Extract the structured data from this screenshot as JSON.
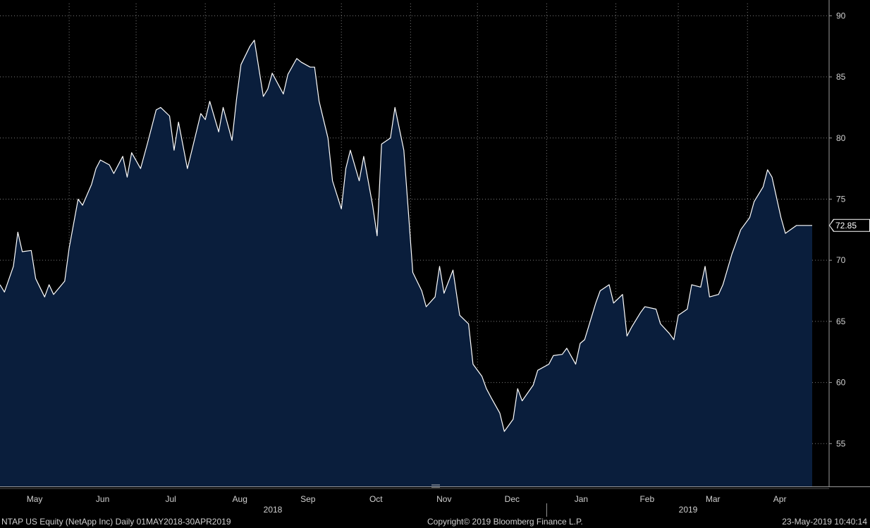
{
  "colors": {
    "background": "#000000",
    "area_fill": "#0a1e3c",
    "line": "#ffffff",
    "grid": "#7a7a7a",
    "text": "#d0d0d0"
  },
  "footer": {
    "left": "NTAP US Equity (NetApp Inc)  Daily 01MAY2018-30APR2019",
    "center": "Copyright© 2019 Bloomberg Finance L.P.",
    "right": "23-May-2019 10:40:14"
  },
  "chart_data": {
    "type": "area",
    "ylim": [
      51.5,
      91
    ],
    "grid": true,
    "y_ticks": [
      55,
      60,
      65,
      70,
      75,
      80,
      85,
      90
    ],
    "x_month_labels": [
      "May",
      "Jun",
      "Jul",
      "Aug",
      "Sep",
      "Oct",
      "Nov",
      "Dec",
      "Jan",
      "Feb",
      "Mar",
      "Apr"
    ],
    "year_labels": [
      "2018",
      "2019"
    ],
    "last_value_label": "72.85",
    "x": [
      "2018-05-01",
      "2018-05-03",
      "2018-05-07",
      "2018-05-09",
      "2018-05-11",
      "2018-05-15",
      "2018-05-17",
      "2018-05-21",
      "2018-05-23",
      "2018-05-25",
      "2018-05-30",
      "2018-06-01",
      "2018-06-05",
      "2018-06-07",
      "2018-06-11",
      "2018-06-13",
      "2018-06-15",
      "2018-06-19",
      "2018-06-21",
      "2018-06-25",
      "2018-06-27",
      "2018-06-29",
      "2018-07-03",
      "2018-07-06",
      "2018-07-10",
      "2018-07-12",
      "2018-07-16",
      "2018-07-18",
      "2018-07-20",
      "2018-07-24",
      "2018-07-26",
      "2018-07-30",
      "2018-08-01",
      "2018-08-03",
      "2018-08-07",
      "2018-08-09",
      "2018-08-13",
      "2018-08-15",
      "2018-08-17",
      "2018-08-21",
      "2018-08-23",
      "2018-08-27",
      "2018-08-29",
      "2018-08-31",
      "2018-09-05",
      "2018-09-07",
      "2018-09-11",
      "2018-09-13",
      "2018-09-17",
      "2018-09-19",
      "2018-09-21",
      "2018-09-25",
      "2018-09-27",
      "2018-10-01",
      "2018-10-03",
      "2018-10-05",
      "2018-10-09",
      "2018-10-11",
      "2018-10-15",
      "2018-10-17",
      "2018-10-19",
      "2018-10-23",
      "2018-10-25",
      "2018-10-29",
      "2018-10-31",
      "2018-11-02",
      "2018-11-06",
      "2018-11-08",
      "2018-11-12",
      "2018-11-14",
      "2018-11-16",
      "2018-11-20",
      "2018-11-23",
      "2018-11-27",
      "2018-11-29",
      "2018-12-03",
      "2018-12-05",
      "2018-12-07",
      "2018-12-11",
      "2018-12-13",
      "2018-12-17",
      "2018-12-19",
      "2018-12-21",
      "2018-12-26",
      "2018-12-28",
      "2019-01-02",
      "2019-01-04",
      "2019-01-08",
      "2019-01-10",
      "2019-01-14",
      "2019-01-16",
      "2019-01-18",
      "2019-01-23",
      "2019-01-25",
      "2019-01-29",
      "2019-01-31",
      "2019-02-04",
      "2019-02-06",
      "2019-02-08",
      "2019-02-12",
      "2019-02-14",
      "2019-02-19",
      "2019-02-21",
      "2019-02-25",
      "2019-02-27",
      "2019-03-01",
      "2019-03-05",
      "2019-03-07",
      "2019-03-11",
      "2019-03-13",
      "2019-03-15",
      "2019-03-19",
      "2019-03-21",
      "2019-03-25",
      "2019-03-27",
      "2019-03-29",
      "2019-04-02",
      "2019-04-04",
      "2019-04-08",
      "2019-04-10",
      "2019-04-12",
      "2019-04-16",
      "2019-04-18",
      "2019-04-23",
      "2019-04-25",
      "2019-04-30"
    ],
    "series": [
      {
        "values": [
          68.0,
          67.4,
          69.5,
          72.3,
          70.7,
          70.8,
          68.5,
          67.0,
          68.0,
          67.2,
          68.3,
          71.0,
          75.0,
          74.5,
          76.2,
          77.5,
          78.2,
          77.8,
          77.1,
          78.5,
          76.8,
          78.8,
          77.5,
          79.5,
          82.3,
          82.5,
          81.8,
          79.0,
          81.3,
          77.5,
          79.0,
          82.0,
          81.5,
          83.0,
          80.5,
          82.5,
          79.8,
          83.2,
          86.0,
          87.5,
          88.0,
          83.4,
          84.0,
          85.3,
          83.6,
          85.2,
          86.5,
          86.2,
          85.8,
          85.8,
          83.0,
          80.0,
          76.5,
          74.2,
          77.5,
          79.0,
          76.5,
          78.5,
          74.5,
          72.0,
          79.5,
          80.0,
          82.5,
          79.0,
          74.0,
          69.0,
          67.5,
          66.2,
          67.0,
          69.5,
          67.3,
          69.2,
          65.5,
          64.8,
          61.5,
          60.5,
          59.5,
          58.8,
          57.5,
          56.0,
          57.0,
          59.5,
          58.5,
          59.8,
          61.0,
          61.5,
          62.2,
          62.3,
          62.8,
          61.5,
          63.2,
          63.5,
          66.5,
          67.5,
          68.0,
          66.5,
          67.2,
          63.8,
          64.5,
          65.7,
          66.2,
          66.0,
          64.8,
          64.0,
          63.5,
          65.5,
          66.0,
          68.0,
          67.8,
          69.5,
          67.0,
          67.2,
          68.0,
          70.5,
          71.5,
          72.5,
          73.5,
          74.8,
          76.0,
          77.4,
          76.8,
          73.5,
          72.2,
          72.85,
          72.85,
          72.85
        ]
      }
    ]
  }
}
